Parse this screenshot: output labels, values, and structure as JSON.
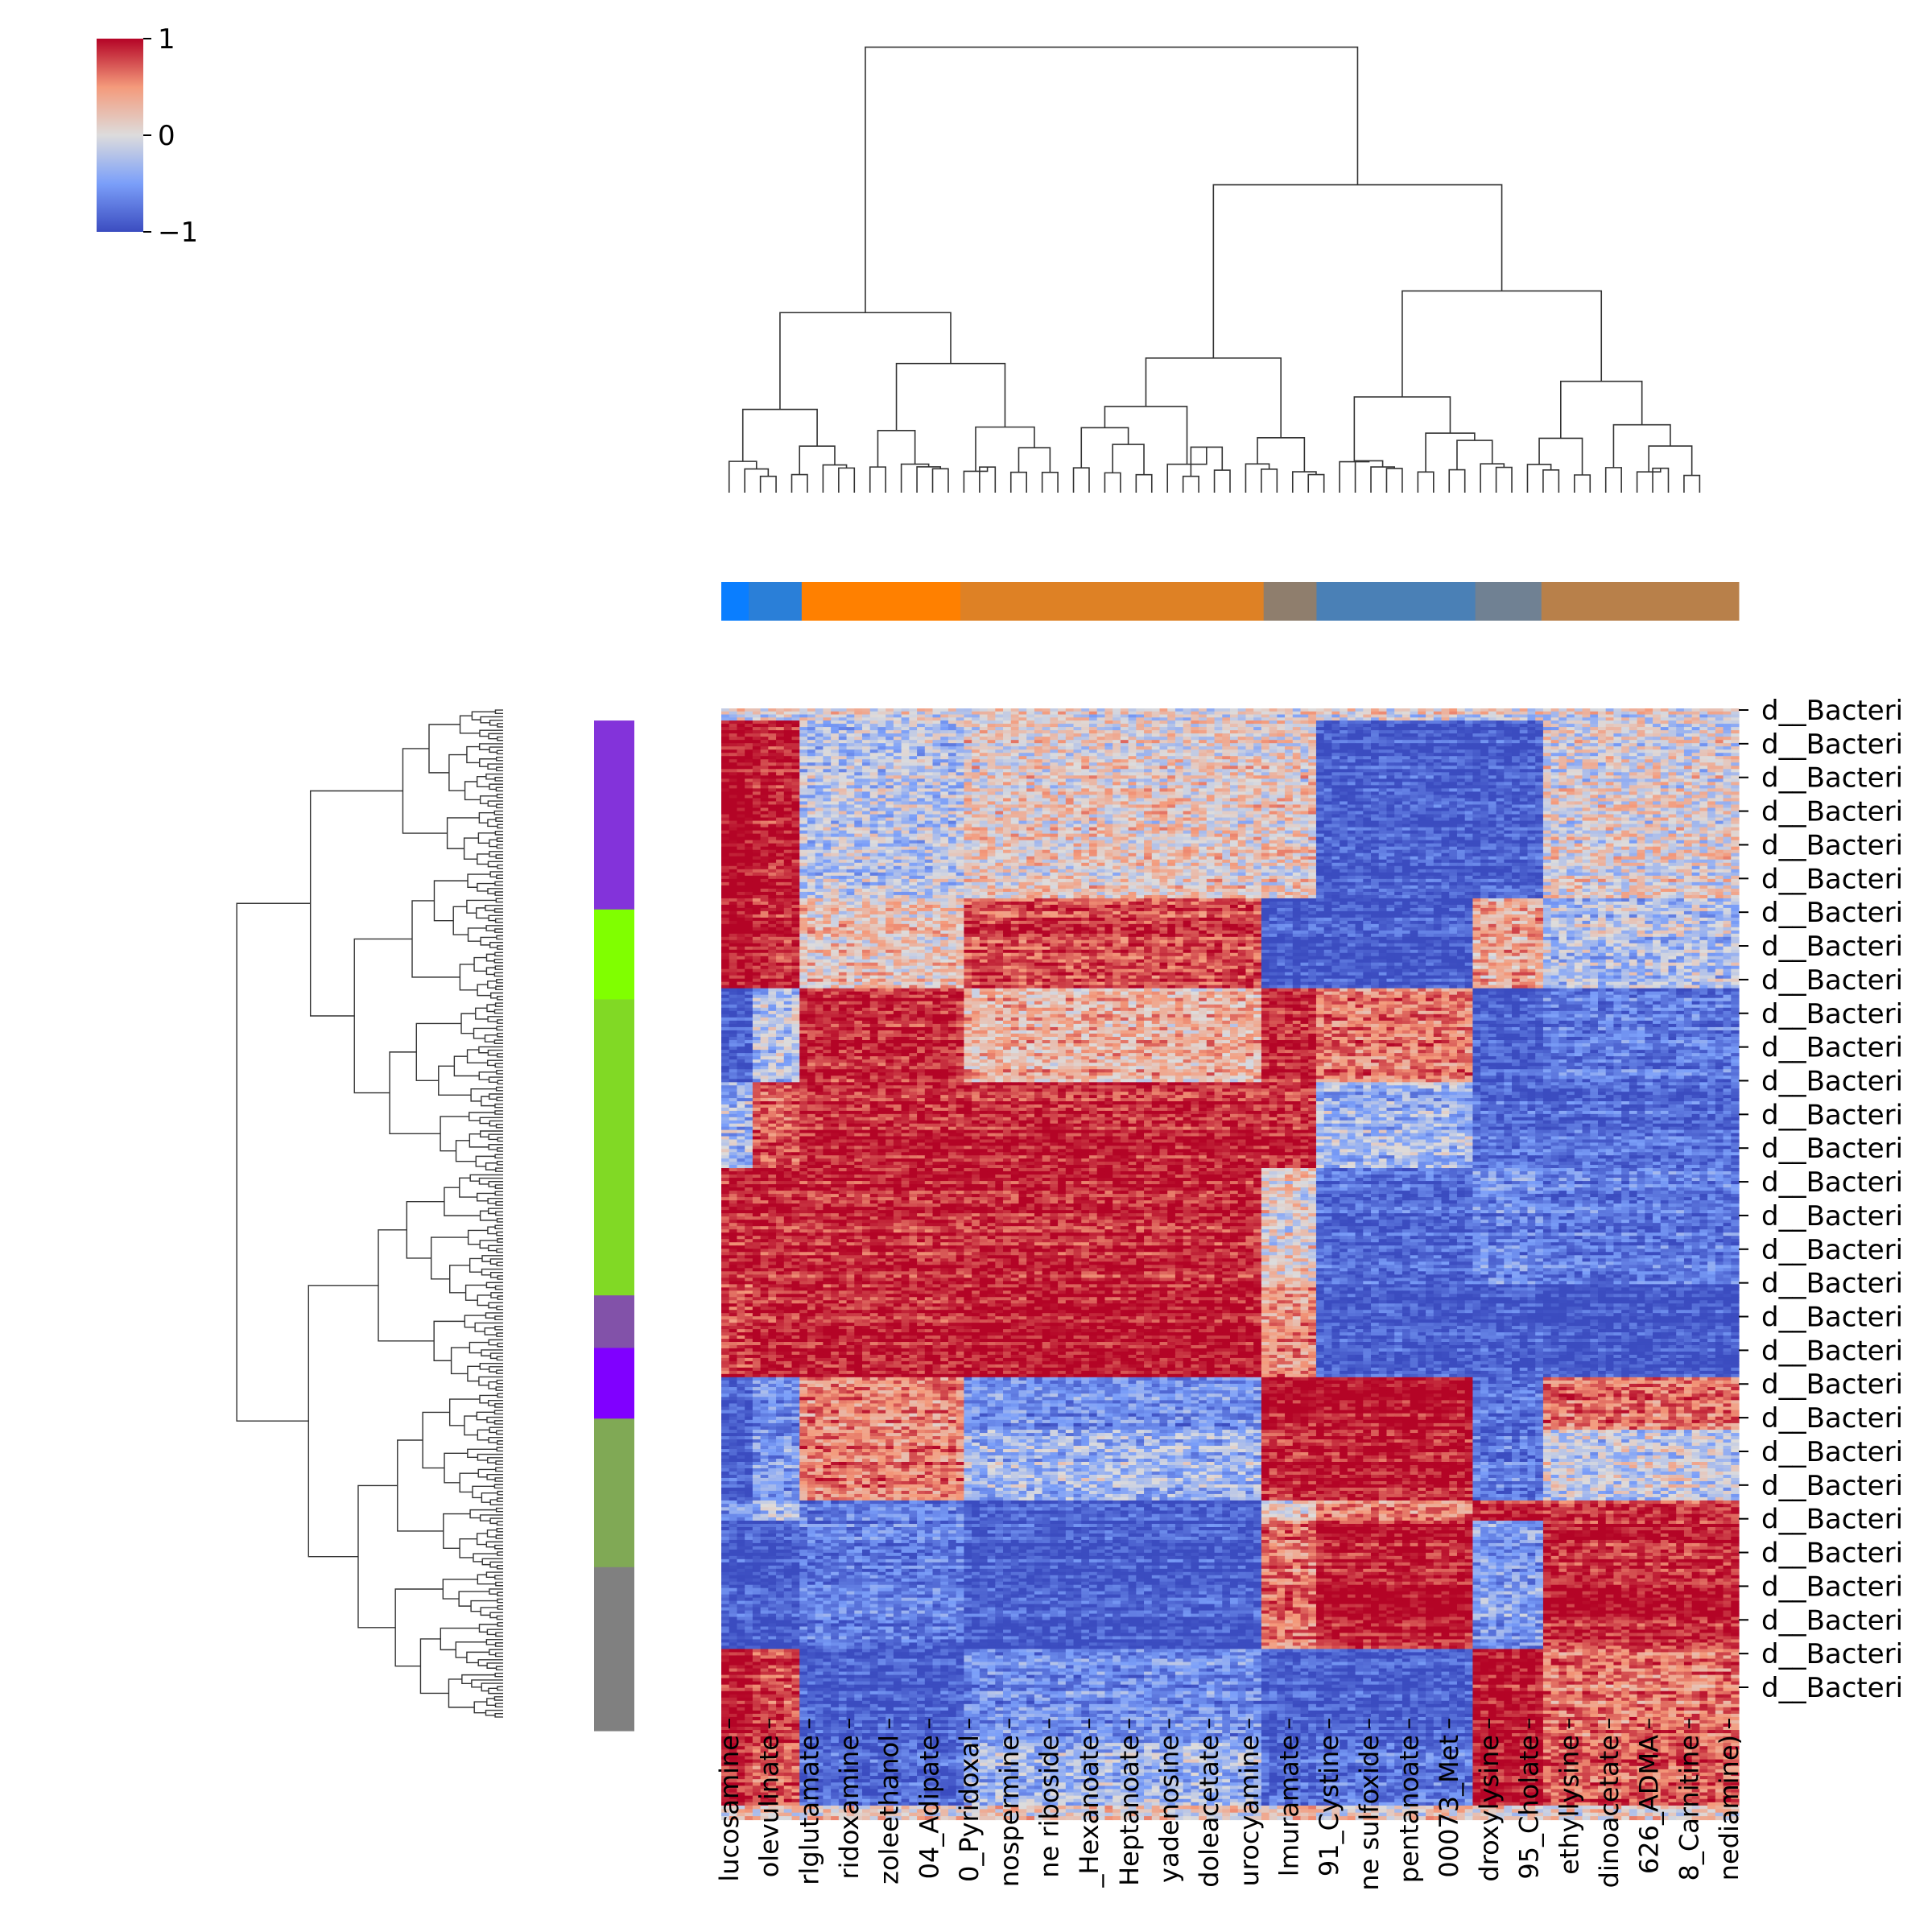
{
  "chart_data": {
    "type": "heatmap",
    "subtype": "clustermap",
    "colormap": "coolwarm",
    "colorbar": {
      "ticks": [
        1,
        0,
        -1
      ],
      "tick_labels": [
        "1",
        "0",
        "−1"
      ],
      "vmin": -1,
      "vmax": 1,
      "colors": [
        "#3b4cc0",
        "#dddcdc",
        "#b40426"
      ],
      "placement": "top-left"
    },
    "x_tick_labels": [
      "lucosamine",
      "olevulinate",
      "rlglutamate",
      "ridoxamine",
      "zoleethanol",
      "04_Adipate",
      "0_Pyridoxal",
      "nospermine",
      "ne riboside",
      "_Hexanoate",
      "Heptanoate",
      "yadenosine",
      "doleacetate",
      "urocyamine",
      "lmuramate",
      "91_Cystine",
      "ne sulfoxide",
      "pentanoate",
      "00073_Met",
      "droxylysine",
      "95_Cholate",
      "ethyllysine",
      "dinoacetate",
      "626_ADMA",
      "8_Carnitine",
      "nediamine)"
    ],
    "y_tick_labels": [
      "d__Bacteri",
      "d__Bacteri",
      "d__Bacteri",
      "d__Bacteri",
      "d__Bacteri",
      "d__Bacteri",
      "d__Bacteri",
      "d__Bacteri",
      "d__Bacteri",
      "d__Bacteri",
      "d__Bacteri",
      "d__Bacteri",
      "d__Bacteri",
      "d__Bacteri",
      "d__Bacteri",
      "d__Bacteri",
      "d__Bacteri",
      "d__Bacteri",
      "d__Bacteri",
      "d__Bacteri",
      "d__Bacteri",
      "d__Bacteri",
      "d__Bacteri",
      "d__Bacteri",
      "d__Bacteri",
      "d__Bacteri",
      "d__Bacteri",
      "d__Bacteri",
      "d__Bacteri",
      "d__Bacteri"
    ],
    "column_groups": [
      {
        "fraction": 0.027,
        "color": "#0a7eff"
      },
      {
        "fraction": 0.052,
        "color": "#2a7fd8"
      },
      {
        "fraction": 0.156,
        "color": "#ff8000"
      },
      {
        "fraction": 0.298,
        "color": "#de8125"
      },
      {
        "fraction": 0.052,
        "color": "#8f7e6d"
      },
      {
        "fraction": 0.156,
        "color": "#4a80b6"
      },
      {
        "fraction": 0.065,
        "color": "#708193"
      },
      {
        "fraction": 0.194,
        "color": "#b8804a"
      }
    ],
    "row_groups": [
      {
        "fraction": 0.187,
        "color": "#8333da"
      },
      {
        "fraction": 0.089,
        "color": "#80ff00"
      },
      {
        "fraction": 0.293,
        "color": "#81d925"
      },
      {
        "fraction": 0.052,
        "color": "#8252a9"
      },
      {
        "fraction": 0.07,
        "color": "#8000ff"
      },
      {
        "fraction": 0.147,
        "color": "#80a955"
      },
      {
        "fraction": 0.162,
        "color": "#808080"
      }
    ],
    "block_means": [
      [
        0.0,
        0.0,
        0.0,
        0.0,
        0.0,
        0.0,
        0.0,
        0.0
      ],
      [
        1.0,
        0.9,
        -0.2,
        0.1,
        0.1,
        -0.9,
        -0.9,
        0.0
      ],
      [
        1.0,
        0.9,
        0.2,
        0.8,
        -0.9,
        -0.9,
        0.4,
        -0.2
      ],
      [
        -0.9,
        -0.2,
        0.9,
        0.3,
        0.9,
        0.6,
        -0.9,
        -0.7
      ],
      [
        -0.3,
        0.7,
        0.9,
        0.9,
        0.9,
        -0.3,
        -0.8,
        -0.8
      ],
      [
        0.9,
        0.9,
        0.9,
        0.9,
        0.1,
        -0.8,
        -0.6,
        -0.7
      ],
      [
        0.8,
        0.9,
        0.9,
        0.95,
        0.5,
        -0.9,
        -0.9,
        -0.95
      ],
      [
        -0.9,
        -0.6,
        0.5,
        -0.6,
        0.95,
        0.95,
        -0.8,
        0.6
      ],
      [
        -0.9,
        -0.5,
        0.6,
        -0.3,
        0.9,
        0.95,
        -0.7,
        -0.1
      ],
      [
        -0.6,
        -0.3,
        -0.7,
        -0.9,
        0.1,
        0.5,
        0.9,
        0.8
      ],
      [
        -0.9,
        -0.9,
        -0.7,
        -0.9,
        0.6,
        0.95,
        -0.5,
        0.9
      ],
      [
        0.95,
        0.8,
        -0.9,
        -0.6,
        -0.9,
        -0.9,
        0.95,
        0.6
      ],
      [
        0.9,
        0.7,
        -0.8,
        -0.3,
        -0.8,
        -0.7,
        0.95,
        0.7
      ],
      [
        0.1,
        0.1,
        0.1,
        0.1,
        0.1,
        0.1,
        0.1,
        0.1
      ]
    ],
    "block_row_fractions": [
      0.012,
      0.176,
      0.089,
      0.093,
      0.085,
      0.115,
      0.092,
      0.052,
      0.07,
      0.02,
      0.127,
      0.093,
      0.062,
      0.014
    ],
    "grid": false
  }
}
